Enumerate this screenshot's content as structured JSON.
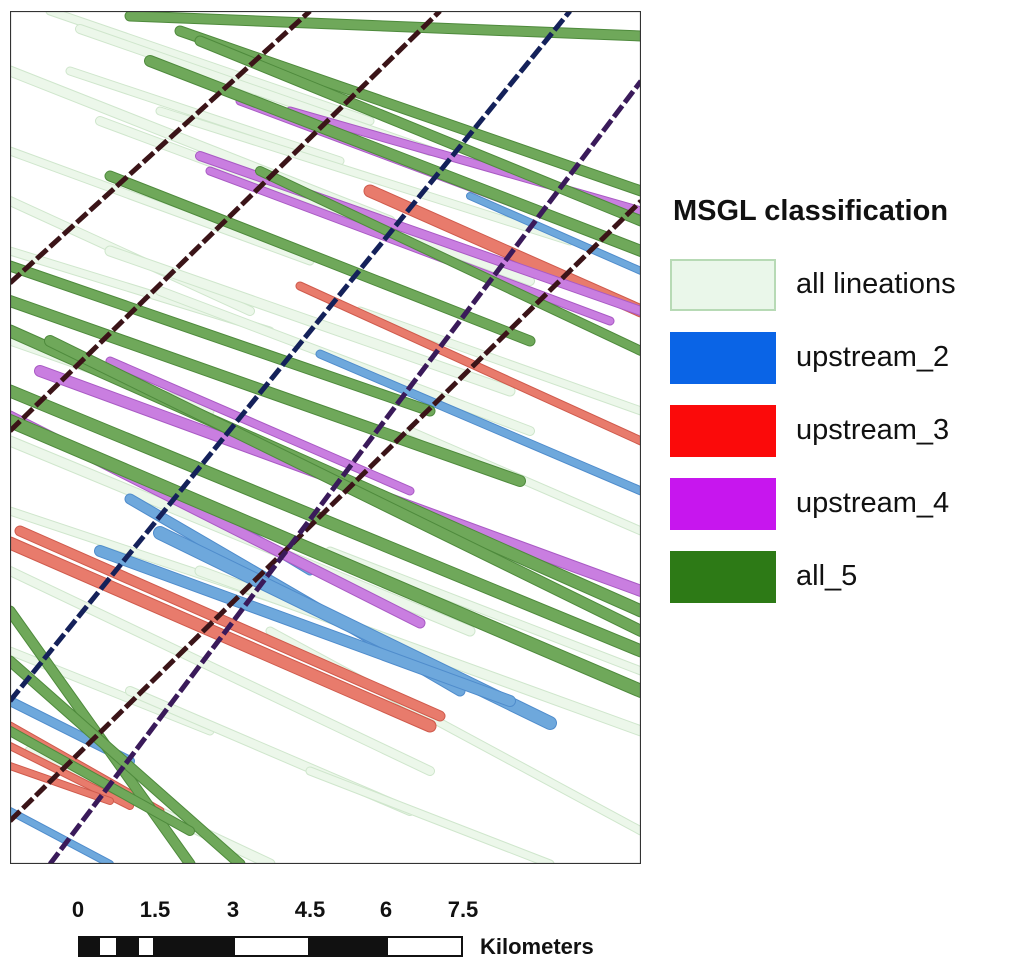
{
  "legend": {
    "title": "MSGL classification",
    "items": [
      {
        "label": "all lineations",
        "color": "#eaf7ea",
        "border": "#b7dab5"
      },
      {
        "label": "upstream_2",
        "color": "#0a64e6",
        "border": "#0a64e6"
      },
      {
        "label": "upstream_3",
        "color": "#fb0a0a",
        "border": "#fb0a0a"
      },
      {
        "label": "upstream_4",
        "color": "#c716ee",
        "border": "#c716ee"
      },
      {
        "label": "all_5",
        "color": "#2d7a16",
        "border": "#2d7a16"
      }
    ]
  },
  "scalebar": {
    "ticks": [
      "0",
      "1.5",
      "3",
      "4.5",
      "6",
      "7.5"
    ],
    "unit": "Kilometers"
  },
  "map": {
    "colors": {
      "lineation_fill": "#ecf7ea",
      "lineation_stroke": "#cfe6cc",
      "upstream_2_fill": "#6ea8dc",
      "upstream_3_fill": "#e87b6c",
      "upstream_4_fill": "#c97ee0",
      "all_5_fill": "#6fa85a",
      "track_dark": "#3b1418",
      "track_navy": "#14215a",
      "track_purple": "#3a1a5a"
    }
  }
}
